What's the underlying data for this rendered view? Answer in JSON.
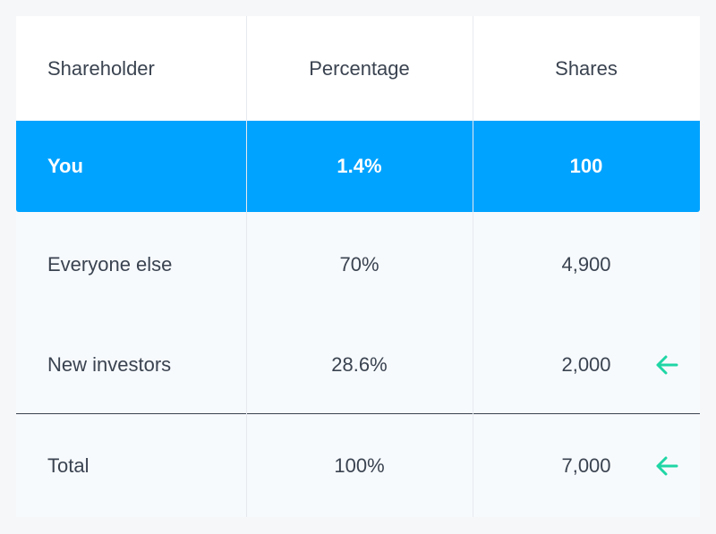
{
  "table": {
    "headers": [
      "Shareholder",
      "Percentage",
      "Shares"
    ],
    "rows": [
      {
        "shareholder": "You",
        "percentage": "1.4%",
        "shares": "100"
      },
      {
        "shareholder": "Everyone else",
        "percentage": "70%",
        "shares": "4,900"
      },
      {
        "shareholder": "New investors",
        "percentage": "28.6%",
        "shares": "2,000"
      }
    ],
    "total": {
      "label": "Total",
      "percentage": "100%",
      "shares": "7,000"
    }
  },
  "colors": {
    "highlight": "#00a3ff",
    "arrow": "#1fd6a5",
    "text": "#3a4350"
  },
  "icons": [
    "arrow-left-icon"
  ]
}
